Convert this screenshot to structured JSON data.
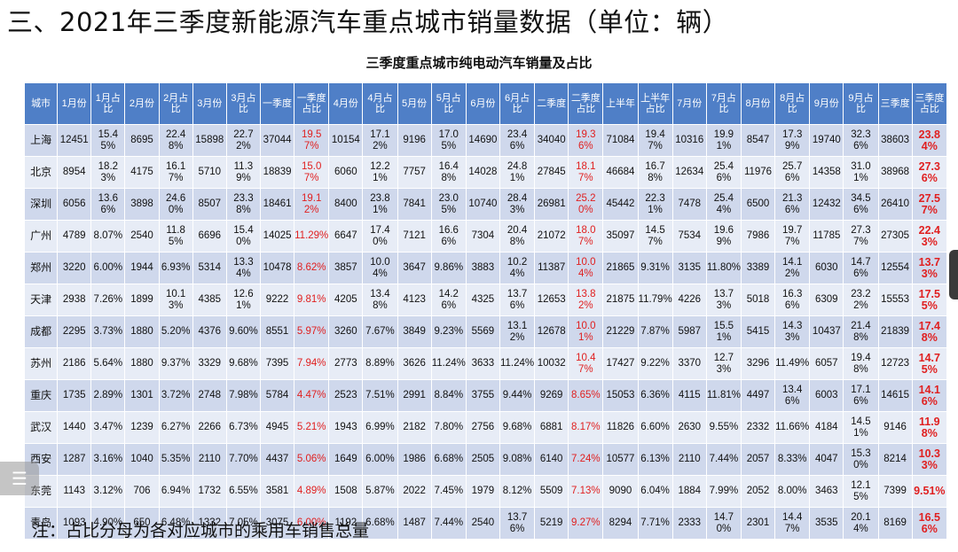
{
  "heading": "三、2021年三季度新能源汽车重点城市销量数据（单位：辆）",
  "subtitle": "三季度重点城市纯电动汽车销量及占比",
  "note": "注：占比分母为各对应城市的乘用车销售总量",
  "menu_icon": "☰",
  "columns": [
    "城市",
    "1月份",
    "1月占比",
    "2月份",
    "2月占比",
    "3月份",
    "3月占比",
    "一季度",
    "一季度占比",
    "4月份",
    "4月占比",
    "5月份",
    "5月占比",
    "6月份",
    "6月占比",
    "二季度",
    "二季度占比",
    "上半年",
    "上半年占比",
    "7月份",
    "7月占比",
    "8月份",
    "8月占比",
    "9月份",
    "9月占比",
    "三季度",
    "三季度占比"
  ],
  "rows": [
    [
      "上海",
      "12451",
      "15.45%",
      "8695",
      "22.48%",
      "15898",
      "22.72%",
      "37044",
      "19.57%",
      "10154",
      "17.12%",
      "9196",
      "17.05%",
      "14690",
      "23.46%",
      "34040",
      "19.36%",
      "71084",
      "19.47%",
      "10316",
      "19.91%",
      "8547",
      "17.39%",
      "19740",
      "32.36%",
      "38603",
      "23.84%"
    ],
    [
      "北京",
      "8954",
      "18.23%",
      "4175",
      "16.17%",
      "5710",
      "11.39%",
      "18839",
      "15.07%",
      "6060",
      "12.21%",
      "7757",
      "16.48%",
      "14028",
      "24.81%",
      "27845",
      "18.17%",
      "46684",
      "16.78%",
      "12634",
      "25.46%",
      "11976",
      "25.76%",
      "14358",
      "31.01%",
      "38968",
      "27.36%"
    ],
    [
      "深圳",
      "6056",
      "13.66%",
      "3898",
      "24.60%",
      "8507",
      "23.38%",
      "18461",
      "19.12%",
      "8400",
      "23.81%",
      "7841",
      "23.05%",
      "10740",
      "28.43%",
      "26981",
      "25.20%",
      "45442",
      "22.31%",
      "7478",
      "25.44%",
      "6500",
      "21.36%",
      "12432",
      "34.56%",
      "26410",
      "27.57%"
    ],
    [
      "广州",
      "4789",
      "8.07%",
      "2540",
      "11.85%",
      "6696",
      "15.40%",
      "14025",
      "11.29%",
      "6647",
      "17.40%",
      "7121",
      "16.66%",
      "7304",
      "20.48%",
      "21072",
      "18.07%",
      "35097",
      "14.57%",
      "7534",
      "19.69%",
      "7986",
      "19.77%",
      "11785",
      "27.37%",
      "27305",
      "22.43%"
    ],
    [
      "郑州",
      "3220",
      "6.00%",
      "1944",
      "6.93%",
      "5314",
      "13.34%",
      "10478",
      "8.62%",
      "3857",
      "10.04%",
      "3647",
      "9.86%",
      "3883",
      "10.24%",
      "11387",
      "10.04%",
      "21865",
      "9.31%",
      "3135",
      "11.80%",
      "3389",
      "14.12%",
      "6030",
      "14.76%",
      "12554",
      "13.73%"
    ],
    [
      "天津",
      "2938",
      "7.26%",
      "1899",
      "10.13%",
      "4385",
      "12.61%",
      "9222",
      "9.81%",
      "4205",
      "13.48%",
      "4123",
      "14.26%",
      "4325",
      "13.76%",
      "12653",
      "13.82%",
      "21875",
      "11.79%",
      "4226",
      "13.73%",
      "5018",
      "16.36%",
      "6309",
      "23.22%",
      "15553",
      "17.55%"
    ],
    [
      "成都",
      "2295",
      "3.73%",
      "1880",
      "5.20%",
      "4376",
      "9.60%",
      "8551",
      "5.97%",
      "3260",
      "7.67%",
      "3849",
      "9.23%",
      "5569",
      "13.12%",
      "12678",
      "10.01%",
      "21229",
      "7.87%",
      "5987",
      "15.51%",
      "5415",
      "14.33%",
      "10437",
      "21.48%",
      "21839",
      "17.48%"
    ],
    [
      "苏州",
      "2186",
      "5.64%",
      "1880",
      "9.37%",
      "3329",
      "9.68%",
      "7395",
      "7.94%",
      "2773",
      "8.89%",
      "3626",
      "11.24%",
      "3633",
      "11.24%",
      "10032",
      "10.47%",
      "17427",
      "9.22%",
      "3370",
      "12.73%",
      "3296",
      "11.49%",
      "6057",
      "19.48%",
      "12723",
      "14.75%"
    ],
    [
      "重庆",
      "1735",
      "2.89%",
      "1301",
      "3.72%",
      "2748",
      "7.98%",
      "5784",
      "4.47%",
      "2523",
      "7.51%",
      "2991",
      "8.84%",
      "3755",
      "9.44%",
      "9269",
      "8.65%",
      "15053",
      "6.36%",
      "4115",
      "11.81%",
      "4497",
      "13.46%",
      "6003",
      "17.16%",
      "14615",
      "14.16%"
    ],
    [
      "武汉",
      "1440",
      "3.47%",
      "1239",
      "6.27%",
      "2266",
      "6.73%",
      "4945",
      "5.21%",
      "1943",
      "6.99%",
      "2182",
      "7.80%",
      "2756",
      "9.68%",
      "6881",
      "8.17%",
      "11826",
      "6.60%",
      "2630",
      "9.55%",
      "2332",
      "11.66%",
      "4184",
      "14.51%",
      "9146",
      "11.98%"
    ],
    [
      "西安",
      "1287",
      "3.16%",
      "1040",
      "5.35%",
      "2110",
      "7.70%",
      "4437",
      "5.06%",
      "1649",
      "6.00%",
      "1986",
      "6.68%",
      "2505",
      "9.08%",
      "6140",
      "7.24%",
      "10577",
      "6.13%",
      "2110",
      "7.44%",
      "2057",
      "8.33%",
      "4047",
      "15.30%",
      "8214",
      "10.33%"
    ],
    [
      "东莞",
      "1143",
      "3.12%",
      "706",
      "6.94%",
      "1732",
      "6.55%",
      "3581",
      "4.89%",
      "1508",
      "5.87%",
      "2022",
      "7.45%",
      "1979",
      "8.12%",
      "5509",
      "7.13%",
      "9090",
      "6.04%",
      "1884",
      "7.99%",
      "2052",
      "8.00%",
      "3463",
      "12.15%",
      "7399",
      "9.51%"
    ],
    [
      "青岛",
      "1093",
      "4.90%",
      "650",
      "6.48%",
      "1332",
      "7.05%",
      "3075",
      "6.00%",
      "1192",
      "6.68%",
      "1487",
      "7.44%",
      "2540",
      "13.76%",
      "5219",
      "9.27%",
      "8294",
      "7.71%",
      "2333",
      "14.70%",
      "2301",
      "14.47%",
      "3535",
      "20.14%",
      "8169",
      "16.56%"
    ]
  ]
}
